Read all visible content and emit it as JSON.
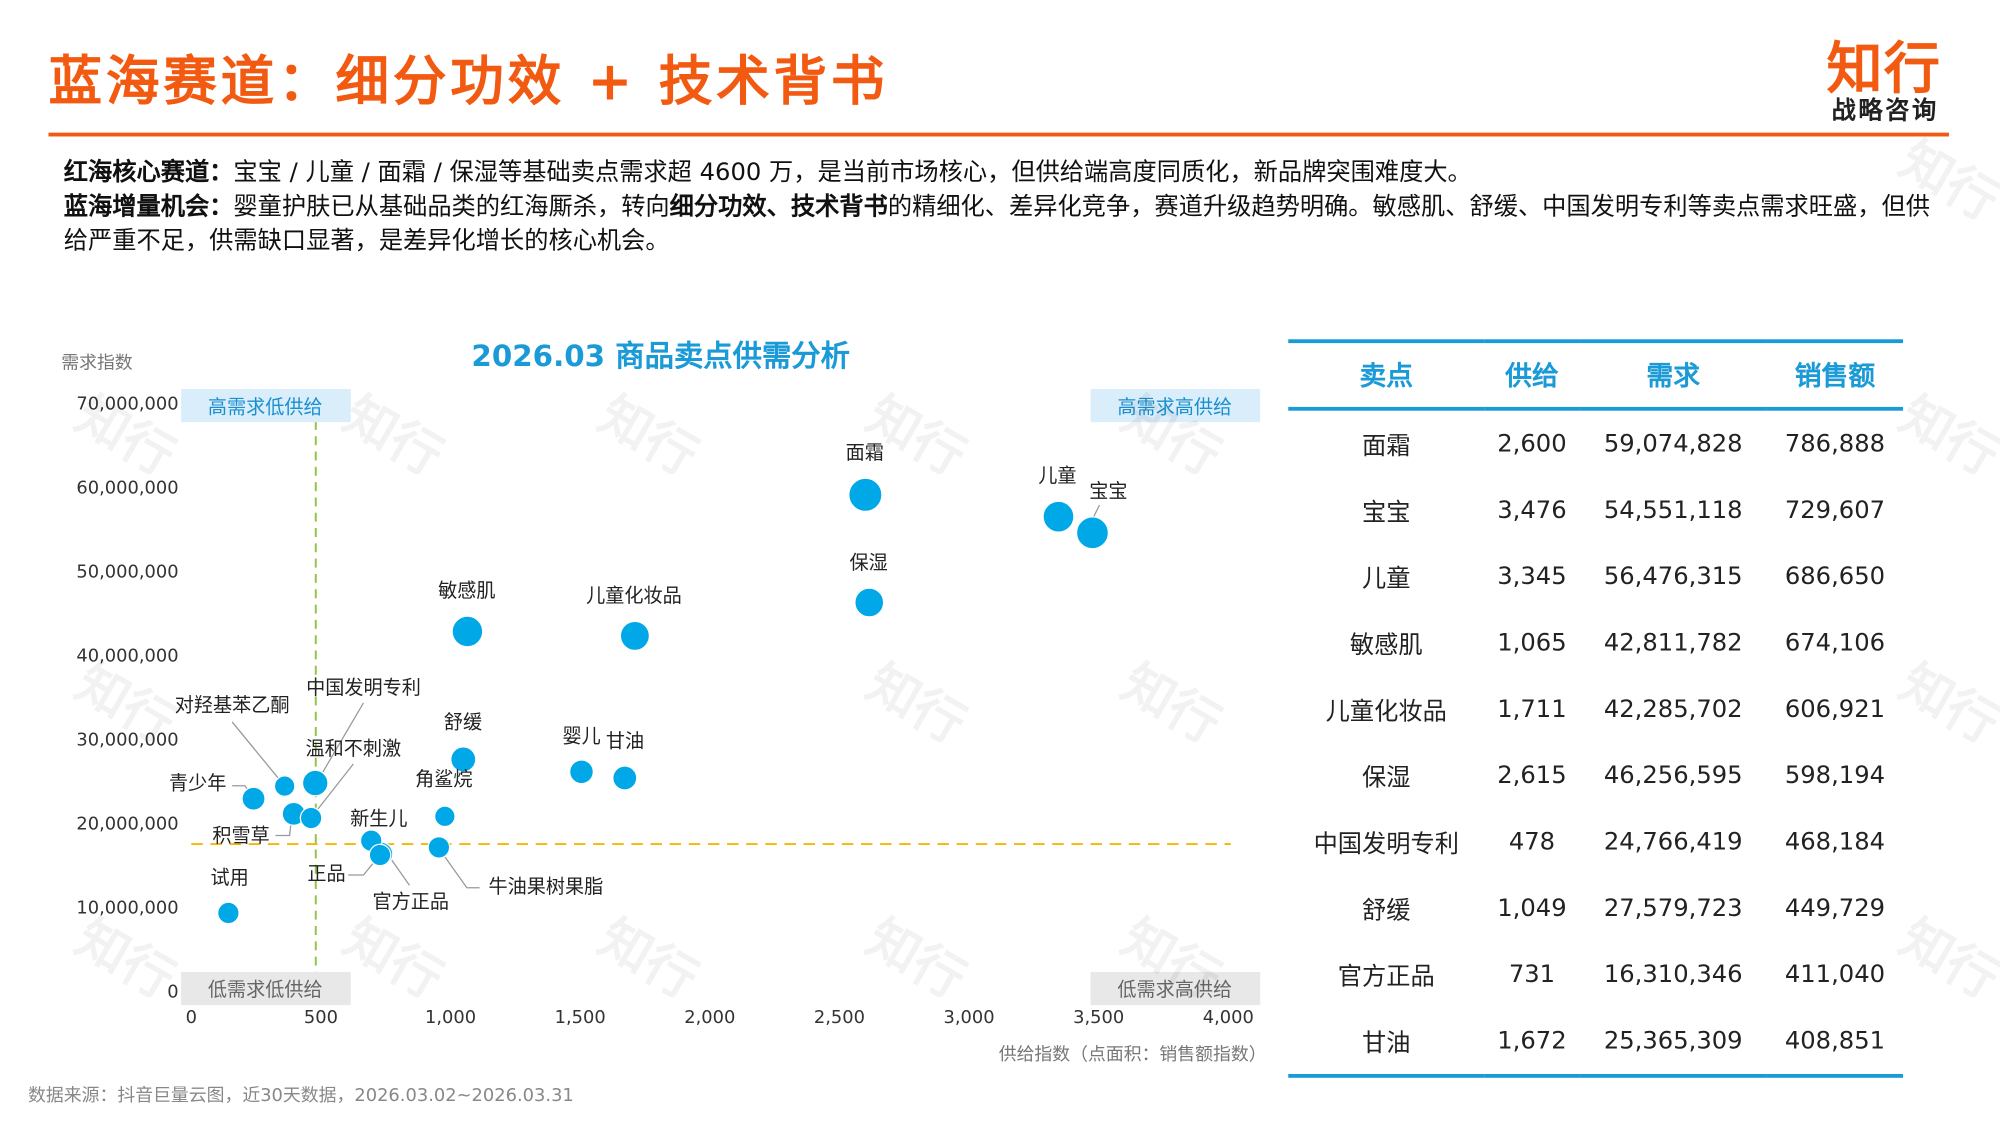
{
  "header": {
    "title": "蓝海赛道：细分功效 + 技术背书",
    "logo_main": "知行",
    "logo_sub": "战略咨询"
  },
  "intro": {
    "line1_label": "红海核心赛道：",
    "line1_text": "宝宝 / 儿童 / 面霜 / 保湿等基础卖点需求超 4600 万，是当前市场核心，但供给端高度同质化，新品牌突围难度大。",
    "line2_label": "蓝海增量机会：",
    "line2_text_a": "婴童护肤已从基础品类的红海厮杀，转向",
    "line2_bold_a": "细分功效",
    "line2_sep": "、",
    "line2_bold_b": "技术背书",
    "line2_text_b": "的精细化、差异化竞争，赛道升级趋势明确。敏感肌、舒缓、中国发明专利等卖点需求旺盛，但供给严重不足，供需缺口显著，是差异化增长的核心机会。"
  },
  "chart_data": {
    "type": "scatter",
    "title": "2026.03 商品卖点供需分析",
    "xlabel": "供给指数（点面积：销售额指数）",
    "ylabel": "需求指数",
    "xlim": [
      0,
      4000
    ],
    "ylim": [
      0,
      70000000
    ],
    "x_ticks": [
      "0",
      "500",
      "1,000",
      "1,500",
      "2,000",
      "2,500",
      "3,000",
      "3,500",
      "4,000"
    ],
    "y_ticks": [
      "0",
      "10,000,000",
      "20,000,000",
      "30,000,000",
      "40,000,000",
      "50,000,000",
      "60,000,000",
      "70,000,000"
    ],
    "grid": false,
    "reference_lines": {
      "x": 480,
      "y": 17500000
    },
    "quadrants": {
      "top_left": "高需求低供给",
      "top_right": "高需求高供给",
      "bottom_left": "低需求低供给",
      "bottom_right": "低需求高供给"
    },
    "point_color": "#00a8e8",
    "points": [
      {
        "label": "面霜",
        "x": 2600,
        "y": 59074828,
        "size": 786888
      },
      {
        "label": "宝宝",
        "x": 3476,
        "y": 54551118,
        "size": 729607
      },
      {
        "label": "儿童",
        "x": 3345,
        "y": 56476315,
        "size": 686650
      },
      {
        "label": "敏感肌",
        "x": 1065,
        "y": 42811782,
        "size": 674106
      },
      {
        "label": "儿童化妆品",
        "x": 1711,
        "y": 42285702,
        "size": 606921
      },
      {
        "label": "保湿",
        "x": 2615,
        "y": 46256595,
        "size": 598194
      },
      {
        "label": "中国发明专利",
        "x": 478,
        "y": 24766419,
        "size": 468184
      },
      {
        "label": "舒缓",
        "x": 1049,
        "y": 27579723,
        "size": 449729
      },
      {
        "label": "官方正品",
        "x": 731,
        "y": 16310346,
        "size": 411040
      },
      {
        "label": "甘油",
        "x": 1672,
        "y": 25365309,
        "size": 408851
      },
      {
        "label": "婴儿",
        "x": 1505,
        "y": 26100000,
        "size": 400000
      },
      {
        "label": "对羟基苯乙酮",
        "x": 360,
        "y": 24400000,
        "size": 300000
      },
      {
        "label": "青少年",
        "x": 240,
        "y": 22900000,
        "size": 380000
      },
      {
        "label": "积雪草",
        "x": 395,
        "y": 21100000,
        "size": 380000
      },
      {
        "label": "温和不刺激",
        "x": 462,
        "y": 20600000,
        "size": 330000
      },
      {
        "label": "角鲨烷",
        "x": 978,
        "y": 20800000,
        "size": 300000
      },
      {
        "label": "新生儿",
        "x": 694,
        "y": 17900000,
        "size": 330000
      },
      {
        "label": "牛油果树果脂",
        "x": 955,
        "y": 17100000,
        "size": 330000
      },
      {
        "label": "正品",
        "x": 728,
        "y": 16200000,
        "size": 330000
      },
      {
        "label": "试用",
        "x": 143,
        "y": 9300000,
        "size": 330000
      }
    ]
  },
  "table": {
    "headers": [
      "卖点",
      "供给",
      "需求",
      "销售额"
    ],
    "rows": [
      [
        "面霜",
        "2,600",
        "59,074,828",
        "786,888"
      ],
      [
        "宝宝",
        "3,476",
        "54,551,118",
        "729,607"
      ],
      [
        "儿童",
        "3,345",
        "56,476,315",
        "686,650"
      ],
      [
        "敏感肌",
        "1,065",
        "42,811,782",
        "674,106"
      ],
      [
        "儿童化妆品",
        "1,711",
        "42,285,702",
        "606,921"
      ],
      [
        "保湿",
        "2,615",
        "46,256,595",
        "598,194"
      ],
      [
        "中国发明专利",
        "478",
        "24,766,419",
        "468,184"
      ],
      [
        "舒缓",
        "1,049",
        "27,579,723",
        "449,729"
      ],
      [
        "官方正品",
        "731",
        "16,310,346",
        "411,040"
      ],
      [
        "甘油",
        "1,672",
        "25,365,309",
        "408,851"
      ]
    ]
  },
  "footer": {
    "source": "数据来源：抖音巨量云图，近30天数据，2026.03.02~2026.03.31"
  },
  "colors": {
    "brand": "#f25a12",
    "accent": "#1a9ad6",
    "point": "#00a8e8",
    "quadrant_line_v": "#8cc63f",
    "quadrant_line_h": "#f5b700"
  }
}
